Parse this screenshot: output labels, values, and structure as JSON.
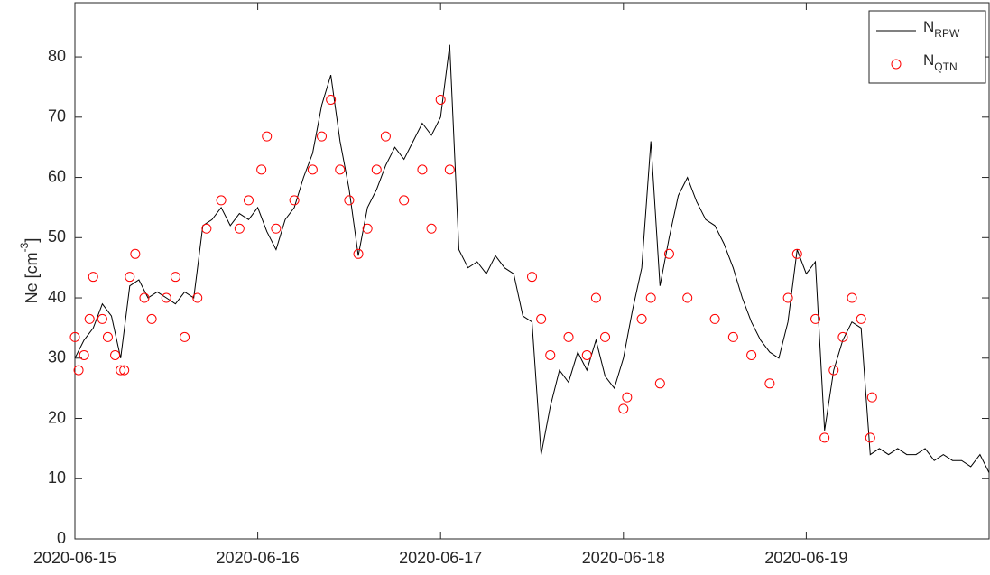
{
  "chart_data": {
    "type": "line",
    "y_label": {
      "text": "Ne [cm",
      "superscript": "-3",
      "suffix": "]"
    },
    "xlim": [
      0,
      5.0
    ],
    "ylim": [
      0,
      89
    ],
    "xticks": [
      {
        "value": 0,
        "label": "2020-06-15"
      },
      {
        "value": 1,
        "label": "2020-06-16"
      },
      {
        "value": 2,
        "label": "2020-06-17"
      },
      {
        "value": 3,
        "label": "2020-06-18"
      },
      {
        "value": 4,
        "label": "2020-06-19"
      }
    ],
    "yticks": [
      0,
      10,
      20,
      30,
      40,
      50,
      60,
      70,
      80
    ],
    "grid": false,
    "legend": "upper right",
    "series": [
      {
        "type": "line",
        "name": "N",
        "subscript": "RPW",
        "color": "#000000",
        "x": [
          0,
          0.05,
          0.1,
          0.15,
          0.2,
          0.25,
          0.3,
          0.35,
          0.4,
          0.45,
          0.5,
          0.55,
          0.6,
          0.65,
          0.7,
          0.75,
          0.8,
          0.85,
          0.9,
          0.95,
          1,
          1.05,
          1.1,
          1.15,
          1.2,
          1.25,
          1.3,
          1.35,
          1.4,
          1.45,
          1.5,
          1.55,
          1.6,
          1.65,
          1.7,
          1.75,
          1.8,
          1.85,
          1.9,
          1.95,
          2,
          2.05,
          2.1,
          2.15,
          2.2,
          2.25,
          2.3,
          2.35,
          2.4,
          2.45,
          2.5,
          2.55,
          2.6,
          2.65,
          2.7,
          2.75,
          2.8,
          2.85,
          2.9,
          2.95,
          3,
          3.05,
          3.1,
          3.15,
          3.2,
          3.25,
          3.3,
          3.35,
          3.4,
          3.45,
          3.5,
          3.55,
          3.6,
          3.65,
          3.7,
          3.75,
          3.8,
          3.85,
          3.9,
          3.95,
          4,
          4.05,
          4.1,
          4.15,
          4.2,
          4.25,
          4.3,
          4.35,
          4.4,
          4.45,
          4.5,
          4.55,
          4.6,
          4.65,
          4.7,
          4.75,
          4.8,
          4.85,
          4.9,
          4.95,
          5
        ],
        "values": [
          30,
          33,
          35,
          39,
          37,
          30,
          42,
          43,
          40,
          41,
          40,
          39,
          41,
          40,
          52,
          53,
          55,
          52,
          54,
          53,
          55,
          51,
          48,
          53,
          55,
          60,
          64,
          72,
          77,
          66,
          58,
          47,
          55,
          58,
          62,
          65,
          63,
          66,
          69,
          67,
          70,
          82,
          48,
          45,
          46,
          44,
          47,
          45,
          44,
          37,
          36,
          14,
          22,
          28,
          26,
          31,
          28,
          33,
          27,
          25,
          30,
          38,
          45,
          66,
          42,
          50,
          57,
          60,
          56,
          53,
          52,
          49,
          45,
          40,
          36,
          33,
          31,
          30,
          36,
          48,
          44,
          46,
          18,
          28,
          33,
          36,
          35,
          14,
          15,
          14,
          15,
          14,
          14,
          15,
          13,
          14,
          13,
          13,
          12,
          14,
          11
        ]
      },
      {
        "type": "scatter",
        "name": "N",
        "subscript": "QTN",
        "color": "#ff0000",
        "x": [
          0,
          0.02,
          0.05,
          0.08,
          0.1,
          0.15,
          0.18,
          0.22,
          0.25,
          0.27,
          0.3,
          0.33,
          0.38,
          0.42,
          0.5,
          0.55,
          0.6,
          0.67,
          0.72,
          0.8,
          0.9,
          0.95,
          1.02,
          1.05,
          1.1,
          1.2,
          1.3,
          1.35,
          1.4,
          1.45,
          1.5,
          1.55,
          1.6,
          1.65,
          1.7,
          1.8,
          1.9,
          1.95,
          2,
          2.05,
          2.5,
          2.55,
          2.6,
          2.7,
          2.8,
          2.85,
          2.9,
          3,
          3.02,
          3.1,
          3.15,
          3.2,
          3.25,
          3.35,
          3.5,
          3.6,
          3.7,
          3.8,
          3.9,
          3.95,
          4.05,
          4.1,
          4.15,
          4.2,
          4.25,
          4.3,
          4.35,
          4.36
        ],
        "values": [
          33.5,
          28,
          30.5,
          36.5,
          43.5,
          36.5,
          33.5,
          30.5,
          28,
          28,
          43.5,
          47.3,
          40,
          36.5,
          40,
          43.5,
          33.5,
          40,
          51.5,
          56.2,
          51.5,
          56.2,
          61.3,
          66.8,
          51.5,
          56.2,
          61.3,
          66.8,
          72.9,
          61.3,
          56.2,
          47.3,
          51.5,
          61.3,
          66.8,
          56.2,
          61.3,
          51.5,
          72.9,
          61.3,
          43.5,
          36.5,
          30.5,
          33.5,
          30.5,
          40,
          33.5,
          21.6,
          23.5,
          36.5,
          40,
          25.8,
          47.3,
          40,
          36.5,
          33.5,
          30.5,
          25.8,
          40,
          47.3,
          36.5,
          16.8,
          28,
          33.5,
          40,
          36.5,
          16.8,
          23.5
        ]
      }
    ]
  }
}
